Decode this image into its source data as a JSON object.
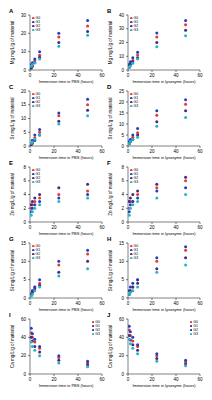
{
  "chart_data": [
    {
      "type": "scatter",
      "title": "A",
      "x_label": "Immersion time in PBS (hours)",
      "y_label": "Mg mg/L/g of material",
      "x": [
        1,
        2,
        4,
        8,
        24,
        48
      ],
      "xlim": [
        0,
        60
      ],
      "xticks": [
        0,
        20,
        40,
        60
      ],
      "ylim": [
        0,
        30
      ],
      "yticks": [
        0,
        10,
        20,
        30
      ],
      "grid": false,
      "legend": "upper left",
      "marker": "circle",
      "series": [
        {
          "name": "G0",
          "color": "#e53935",
          "values": [
            2,
            3,
            5,
            8,
            18,
            24
          ]
        },
        {
          "name": "G1",
          "color": "#1e40c8",
          "values": [
            3,
            4,
            6,
            10,
            20,
            27
          ]
        },
        {
          "name": "G2",
          "color": "#4a2a7a",
          "values": [
            1,
            2,
            4,
            7,
            15,
            21
          ]
        },
        {
          "name": "G3",
          "color": "#26b5c8",
          "values": [
            2,
            3,
            4,
            6,
            13,
            19
          ]
        }
      ]
    },
    {
      "type": "scatter",
      "title": "B",
      "x_label": "Immersion time in lysozyme (hours)",
      "y_label": "Mg mg/L/g of material",
      "x": [
        1,
        2,
        4,
        8,
        24,
        48
      ],
      "xlim": [
        0,
        60
      ],
      "xticks": [
        0,
        20,
        40,
        60
      ],
      "ylim": [
        0,
        40
      ],
      "yticks": [
        0,
        10,
        20,
        30,
        40
      ],
      "grid": false,
      "legend": "upper left",
      "marker": "circle",
      "series": [
        {
          "name": "G0",
          "color": "#e53935",
          "values": [
            3,
            5,
            7,
            11,
            24,
            33
          ]
        },
        {
          "name": "G1",
          "color": "#1e40c8",
          "values": [
            4,
            6,
            9,
            13,
            27,
            36
          ]
        },
        {
          "name": "G2",
          "color": "#4a2a7a",
          "values": [
            2,
            4,
            6,
            9,
            20,
            29
          ]
        },
        {
          "name": "G3",
          "color": "#26b5c8",
          "values": [
            2,
            3,
            5,
            8,
            17,
            25
          ]
        }
      ]
    },
    {
      "type": "scatter",
      "title": "C",
      "x_label": "Immersion time in PBS (hours)",
      "y_label": "Sr mg/L/g of material",
      "x": [
        1,
        2,
        4,
        8,
        24,
        48
      ],
      "xlim": [
        0,
        60
      ],
      "xticks": [
        0,
        20,
        40,
        60
      ],
      "ylim": [
        0,
        20
      ],
      "yticks": [
        0,
        5,
        10,
        15,
        20
      ],
      "grid": false,
      "legend": "upper left",
      "marker": "circle",
      "series": [
        {
          "name": "G0",
          "color": "#e53935",
          "values": [
            1,
            2,
            3,
            5,
            11,
            15
          ]
        },
        {
          "name": "G1",
          "color": "#1e40c8",
          "values": [
            1,
            2,
            4,
            6,
            12,
            17
          ]
        },
        {
          "name": "G2",
          "color": "#4a2a7a",
          "values": [
            0.5,
            1,
            2,
            4,
            9,
            13
          ]
        },
        {
          "name": "G3",
          "color": "#26b5c8",
          "values": [
            1,
            1.5,
            2.5,
            4,
            8,
            11
          ]
        }
      ]
    },
    {
      "type": "scatter",
      "title": "D",
      "x_label": "Immersion time in lysozyme (hours)",
      "y_label": "Sr mg/L/g of material",
      "x": [
        1,
        2,
        4,
        8,
        24,
        48
      ],
      "xlim": [
        0,
        60
      ],
      "xticks": [
        0,
        20,
        40,
        60
      ],
      "ylim": [
        0,
        25
      ],
      "yticks": [
        0,
        5,
        10,
        15,
        20,
        25
      ],
      "grid": false,
      "legend": "upper left",
      "marker": "circle",
      "series": [
        {
          "name": "G0",
          "color": "#e53935",
          "values": [
            1,
            2,
            4,
            6,
            14,
            19
          ]
        },
        {
          "name": "G1",
          "color": "#1e40c8",
          "values": [
            2,
            3,
            5,
            8,
            16,
            21
          ]
        },
        {
          "name": "G2",
          "color": "#4a2a7a",
          "values": [
            1,
            2,
            3,
            5,
            11,
            16
          ]
        },
        {
          "name": "G3",
          "color": "#26b5c8",
          "values": [
            1,
            2,
            3,
            4,
            9,
            13
          ]
        }
      ]
    },
    {
      "type": "scatter",
      "title": "E",
      "x_label": "Immersion time in PBS (hours)",
      "y_label": "Zn mg/L/g of material",
      "x": [
        1,
        2,
        4,
        8,
        24,
        48
      ],
      "xlim": [
        0,
        60
      ],
      "xticks": [
        0,
        20,
        40,
        60
      ],
      "ylim": [
        0,
        8
      ],
      "yticks": [
        0,
        2,
        4,
        6,
        8
      ],
      "grid": false,
      "legend": "upper left",
      "marker": "circle",
      "series": [
        {
          "name": "G0",
          "color": "#e53935",
          "values": [
            2,
            2.5,
            3,
            3.5,
            4,
            4.5
          ]
        },
        {
          "name": "G1",
          "color": "#1e40c8",
          "values": [
            1.5,
            2,
            2.5,
            3,
            3.5,
            4
          ]
        },
        {
          "name": "G2",
          "color": "#4a2a7a",
          "values": [
            2.5,
            3,
            3.5,
            4,
            5,
            5.5
          ]
        },
        {
          "name": "G3",
          "color": "#26b5c8",
          "values": [
            1,
            1.5,
            2,
            2.5,
            3,
            3.5
          ]
        }
      ]
    },
    {
      "type": "scatter",
      "title": "F",
      "x_label": "Immersion time in lysozyme (hours)",
      "y_label": "Zn mg/L/g of material",
      "x": [
        1,
        2,
        4,
        8,
        24,
        48
      ],
      "xlim": [
        0,
        60
      ],
      "xticks": [
        0,
        20,
        40,
        60
      ],
      "ylim": [
        0,
        8
      ],
      "yticks": [
        0,
        2,
        4,
        6,
        8
      ],
      "grid": false,
      "legend": "upper left",
      "marker": "circle",
      "series": [
        {
          "name": "G0",
          "color": "#e53935",
          "values": [
            2,
            3,
            3,
            4,
            5,
            6
          ]
        },
        {
          "name": "G1",
          "color": "#1e40c8",
          "values": [
            1.5,
            2.5,
            3,
            3.5,
            4.5,
            5
          ]
        },
        {
          "name": "G2",
          "color": "#4a2a7a",
          "values": [
            3,
            3.5,
            4,
            4.5,
            5.5,
            6.5
          ]
        },
        {
          "name": "G3",
          "color": "#26b5c8",
          "values": [
            1,
            2,
            2.5,
            3,
            3.5,
            4
          ]
        }
      ]
    },
    {
      "type": "scatter",
      "title": "G",
      "x_label": "Immersion time in PBS (hours)",
      "y_label": "Si mg/L/g of material",
      "x": [
        1,
        2,
        4,
        8,
        24,
        48
      ],
      "xlim": [
        0,
        60
      ],
      "xticks": [
        0,
        20,
        40,
        60
      ],
      "ylim": [
        0,
        15
      ],
      "yticks": [
        0,
        5,
        10,
        15
      ],
      "grid": false,
      "legend": "upper left",
      "marker": "circle",
      "series": [
        {
          "name": "G0",
          "color": "#e53935",
          "values": [
            1,
            2,
            3,
            4,
            9,
            12
          ]
        },
        {
          "name": "G1",
          "color": "#1e40c8",
          "values": [
            1,
            2,
            3,
            5,
            10,
            13
          ]
        },
        {
          "name": "G2",
          "color": "#4a2a7a",
          "values": [
            1,
            1.5,
            2.5,
            3.5,
            7,
            10
          ]
        },
        {
          "name": "G3",
          "color": "#26b5c8",
          "values": [
            0.5,
            1,
            2,
            3,
            6,
            8
          ]
        }
      ]
    },
    {
      "type": "scatter",
      "title": "H",
      "x_label": "Immersion time in lysozyme (hours)",
      "y_label": "Si mg/L/g of material",
      "x": [
        1,
        2,
        4,
        8,
        24,
        48
      ],
      "xlim": [
        0,
        60
      ],
      "xticks": [
        0,
        20,
        40,
        60
      ],
      "ylim": [
        0,
        15
      ],
      "yticks": [
        0,
        5,
        10,
        15
      ],
      "grid": false,
      "legend": "upper left",
      "marker": "circle",
      "series": [
        {
          "name": "G0",
          "color": "#e53935",
          "values": [
            1,
            2,
            3,
            5,
            10,
            13
          ]
        },
        {
          "name": "G1",
          "color": "#1e40c8",
          "values": [
            2,
            3,
            4,
            5,
            11,
            14
          ]
        },
        {
          "name": "G2",
          "color": "#4a2a7a",
          "values": [
            1,
            2,
            3,
            4,
            8,
            11
          ]
        },
        {
          "name": "G3",
          "color": "#26b5c8",
          "values": [
            1,
            1.5,
            2,
            3,
            7,
            9
          ]
        }
      ]
    },
    {
      "type": "scatter",
      "title": "I",
      "x_label": "Immersion time in PBS (hours)",
      "y_label": "Ca mg/L/g of material",
      "x": [
        1,
        2,
        4,
        8,
        24,
        48
      ],
      "xlim": [
        0,
        60
      ],
      "xticks": [
        0,
        20,
        40,
        60
      ],
      "ylim": [
        0,
        60
      ],
      "yticks": [
        0,
        20,
        40,
        60
      ],
      "grid": false,
      "legend": "upper right",
      "marker": "circle",
      "series": [
        {
          "name": "G0",
          "color": "#e53935",
          "values": [
            45,
            40,
            35,
            28,
            18,
            12
          ]
        },
        {
          "name": "G1",
          "color": "#1e40c8",
          "values": [
            50,
            44,
            38,
            30,
            20,
            14
          ]
        },
        {
          "name": "G2",
          "color": "#4a2a7a",
          "values": [
            40,
            36,
            30,
            24,
            15,
            10
          ]
        },
        {
          "name": "G3",
          "color": "#26b5c8",
          "values": [
            35,
            30,
            26,
            20,
            12,
            8
          ]
        }
      ]
    },
    {
      "type": "scatter",
      "title": "J",
      "x_label": "Immersion time in lysozyme (hours)",
      "y_label": "Ca mg/L/g of material",
      "x": [
        1,
        2,
        4,
        8,
        24,
        48
      ],
      "xlim": [
        0,
        60
      ],
      "xticks": [
        0,
        20,
        40,
        60
      ],
      "ylim": [
        0,
        60
      ],
      "yticks": [
        0,
        20,
        40,
        60
      ],
      "grid": false,
      "legend": "upper right",
      "marker": "circle",
      "series": [
        {
          "name": "G0",
          "color": "#e53935",
          "values": [
            48,
            42,
            36,
            30,
            20,
            13
          ]
        },
        {
          "name": "G1",
          "color": "#1e40c8",
          "values": [
            52,
            46,
            40,
            32,
            22,
            15
          ]
        },
        {
          "name": "G2",
          "color": "#4a2a7a",
          "values": [
            42,
            37,
            32,
            26,
            17,
            11
          ]
        },
        {
          "name": "G3",
          "color": "#26b5c8",
          "values": [
            38,
            33,
            28,
            22,
            14,
            9
          ]
        }
      ]
    }
  ]
}
